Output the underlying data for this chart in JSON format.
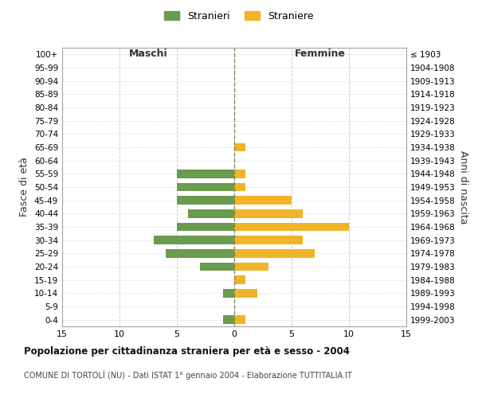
{
  "age_groups": [
    "100+",
    "95-99",
    "90-94",
    "85-89",
    "80-84",
    "75-79",
    "70-74",
    "65-69",
    "60-64",
    "55-59",
    "50-54",
    "45-49",
    "40-44",
    "35-39",
    "30-34",
    "25-29",
    "20-24",
    "15-19",
    "10-14",
    "5-9",
    "0-4"
  ],
  "birth_years": [
    "≤ 1903",
    "1904-1908",
    "1909-1913",
    "1914-1918",
    "1919-1923",
    "1924-1928",
    "1929-1933",
    "1934-1938",
    "1939-1943",
    "1944-1948",
    "1949-1953",
    "1954-1958",
    "1959-1963",
    "1964-1968",
    "1969-1973",
    "1974-1978",
    "1979-1983",
    "1984-1988",
    "1989-1993",
    "1994-1998",
    "1999-2003"
  ],
  "males": [
    0,
    0,
    0,
    0,
    0,
    0,
    0,
    0,
    0,
    5,
    5,
    5,
    4,
    5,
    7,
    6,
    3,
    0,
    1,
    0,
    1
  ],
  "females": [
    0,
    0,
    0,
    0,
    0,
    0,
    0,
    1,
    0,
    1,
    1,
    5,
    6,
    10,
    6,
    7,
    3,
    1,
    2,
    0,
    1
  ],
  "male_color": "#6a9b4e",
  "female_color": "#f0b429",
  "background_color": "#ffffff",
  "grid_color": "#cccccc",
  "grid_color_y": "#dddddd",
  "center_line_color": "#888855",
  "title": "Popolazione per cittadinanza straniera per età e sesso - 2004",
  "subtitle": "COMUNE DI TORTOLÌ (NU) - Dati ISTAT 1° gennaio 2004 - Elaborazione TUTTITALIA.IT",
  "xlabel_left": "Maschi",
  "xlabel_right": "Femmine",
  "ylabel_left": "Fasce di età",
  "ylabel_right": "Anni di nascita",
  "legend_stranieri": "Stranieri",
  "legend_straniere": "Straniere",
  "xlim": 15
}
